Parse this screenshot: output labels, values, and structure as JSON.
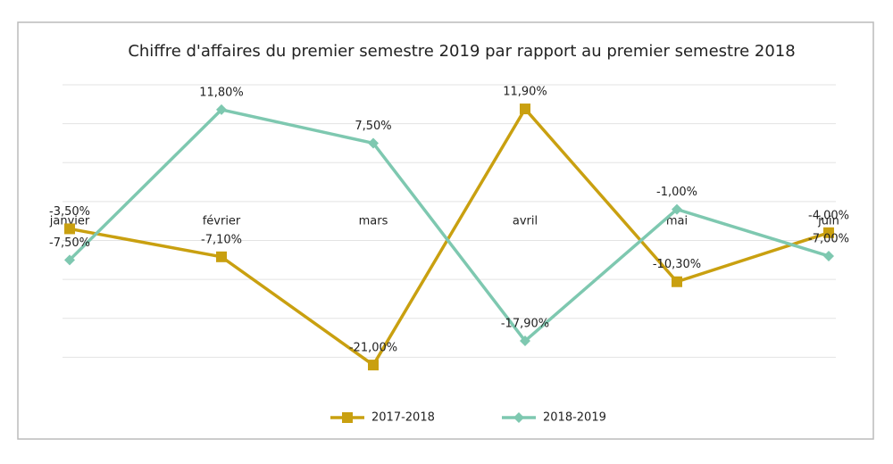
{
  "chart_data": {
    "type": "line",
    "title": "Chiffre d'affaires du premier semestre 2019 par rapport au premier semestre 2018",
    "categories": [
      "janvier",
      "février",
      "mars",
      "avril",
      "mai",
      "juin"
    ],
    "series": [
      {
        "name": "2017-2018",
        "color": "#c9a010",
        "marker": "square",
        "values": [
          -3.5,
          -7.1,
          -21.0,
          11.9,
          -10.3,
          -4.0
        ],
        "value_labels": [
          "-3,50%",
          "-7,10%",
          "-21,00%",
          "11,90%",
          "-10,30%",
          "-4,00%"
        ]
      },
      {
        "name": "2018-2019",
        "color": "#7ec8b0",
        "marker": "diamond",
        "values": [
          -7.5,
          11.8,
          7.5,
          -17.9,
          -1.0,
          -7.0
        ],
        "value_labels": [
          "-7,50%",
          "11,80%",
          "7,50%",
          "-17,90%",
          "-1,00%",
          "-7,00%"
        ]
      }
    ],
    "ylim": [
      -25,
      15
    ],
    "yticks": [
      -20,
      -15,
      -10,
      -5,
      0,
      5,
      10,
      15
    ],
    "ytick_labels": false,
    "grid": true,
    "legend": "bottom"
  }
}
